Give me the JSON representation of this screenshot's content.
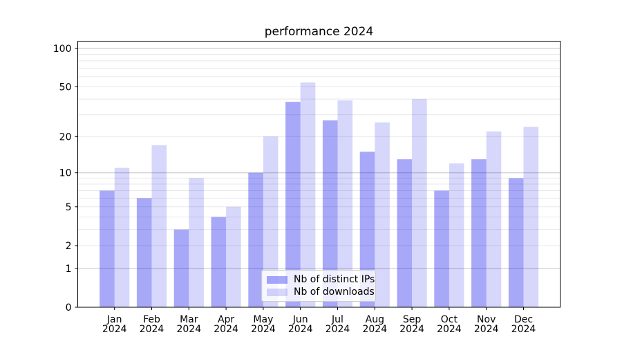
{
  "figure": {
    "title": "performance 2024"
  },
  "chart_data": {
    "type": "bar",
    "title": "performance 2024",
    "categories": [
      "Jan",
      "Feb",
      "Mar",
      "Apr",
      "May",
      "Jun",
      "Jul",
      "Aug",
      "Sep",
      "Oct",
      "Nov",
      "Dec"
    ],
    "category_year": "2024",
    "series": [
      {
        "name": "Nb of distinct IPs",
        "color": "rgba(0,0,238,0.34)",
        "values": [
          7,
          6,
          3,
          4,
          10,
          38,
          27,
          15,
          13,
          7,
          13,
          9
        ]
      },
      {
        "name": "Nb of downloads",
        "color": "rgba(0,0,238,0.155)",
        "values": [
          11,
          17,
          9,
          5,
          20,
          54,
          39,
          26,
          40,
          12,
          22,
          24
        ]
      }
    ],
    "xlabel": "",
    "ylabel": "",
    "yscale": "log1p",
    "ylim": [
      0,
      114
    ],
    "yticks": [
      0,
      1,
      2,
      5,
      10,
      20,
      50,
      100
    ],
    "gridlines_major": [
      1,
      10,
      100
    ],
    "gridlines_minor": [
      2,
      3,
      4,
      5,
      6,
      7,
      8,
      9,
      20,
      30,
      40,
      50,
      60,
      70,
      80,
      90
    ],
    "grid": true,
    "legend_position": "lower center"
  },
  "colors": {
    "background": "#ffffff",
    "axis": "#000000",
    "grid_major": "#c3c3c3",
    "grid_minor": "#e8e8e8",
    "legend_border": "#cccccc"
  }
}
